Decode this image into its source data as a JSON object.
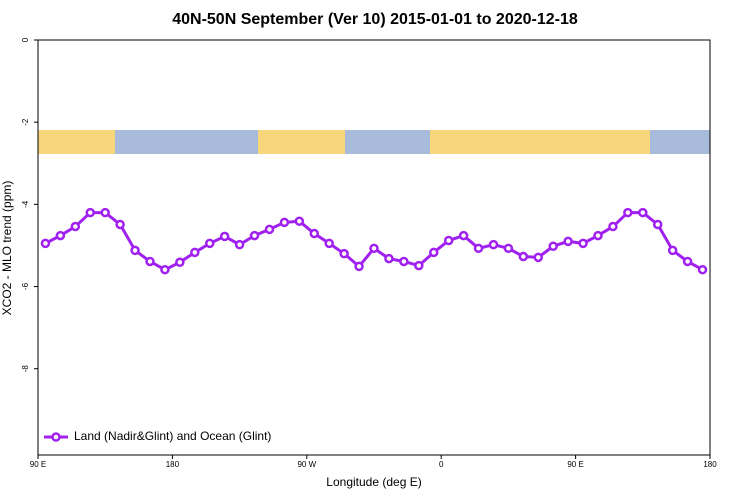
{
  "chart_data": {
    "type": "line",
    "title": "40N-50N September (Ver 10)   2015-01-01 to 2020-12-18",
    "x_label": "Longitude (deg E)",
    "y_label": "XCO2 - MLO trend (ppm)",
    "x": [
      95,
      105,
      115,
      125,
      135,
      145,
      155,
      165,
      175,
      185,
      195,
      205,
      215,
      225,
      235,
      245,
      255,
      265,
      275,
      285,
      295,
      305,
      315,
      325,
      335,
      345,
      355,
      365,
      375,
      385,
      395,
      405,
      415,
      425,
      435,
      445,
      455,
      465,
      475,
      485,
      495,
      505,
      515,
      525,
      535
    ],
    "series": [
      {
        "name": "Land (Nadir&Glint) and Ocean (Glint)",
        "color": "#a020f0",
        "values": [
          -4.95,
          -4.76,
          -4.54,
          -4.2,
          -4.2,
          -4.49,
          -5.12,
          -5.39,
          -5.59,
          -5.41,
          -5.17,
          -4.95,
          -4.78,
          -4.98,
          -4.76,
          -4.61,
          -4.44,
          -4.41,
          -4.71,
          -4.95,
          -5.2,
          -5.51,
          -5.07,
          -5.32,
          -5.39,
          -5.49,
          -5.17,
          -4.88,
          -4.76,
          -5.07,
          -4.98,
          -5.07,
          -5.27,
          -5.29,
          -5.02,
          -4.9,
          -4.95,
          -4.76,
          -4.54,
          -4.2,
          -4.2,
          -4.49,
          -5.12,
          -5.39,
          -5.59
        ]
      }
    ],
    "xlim": [
      90,
      540
    ],
    "xticks": [
      {
        "value": 90,
        "label": "90 E"
      },
      180,
      {
        "value": 270,
        "label": "90 W"
      },
      {
        "value": 360,
        "label": "0"
      },
      {
        "value": 450,
        "label": "90 E"
      },
      {
        "value": 540,
        "label": "180"
      }
    ],
    "ylim": [
      -10.1,
      0
    ],
    "yticks": [
      0,
      -2,
      -4,
      -6,
      -8
    ],
    "legend": "bottom-left"
  }
}
